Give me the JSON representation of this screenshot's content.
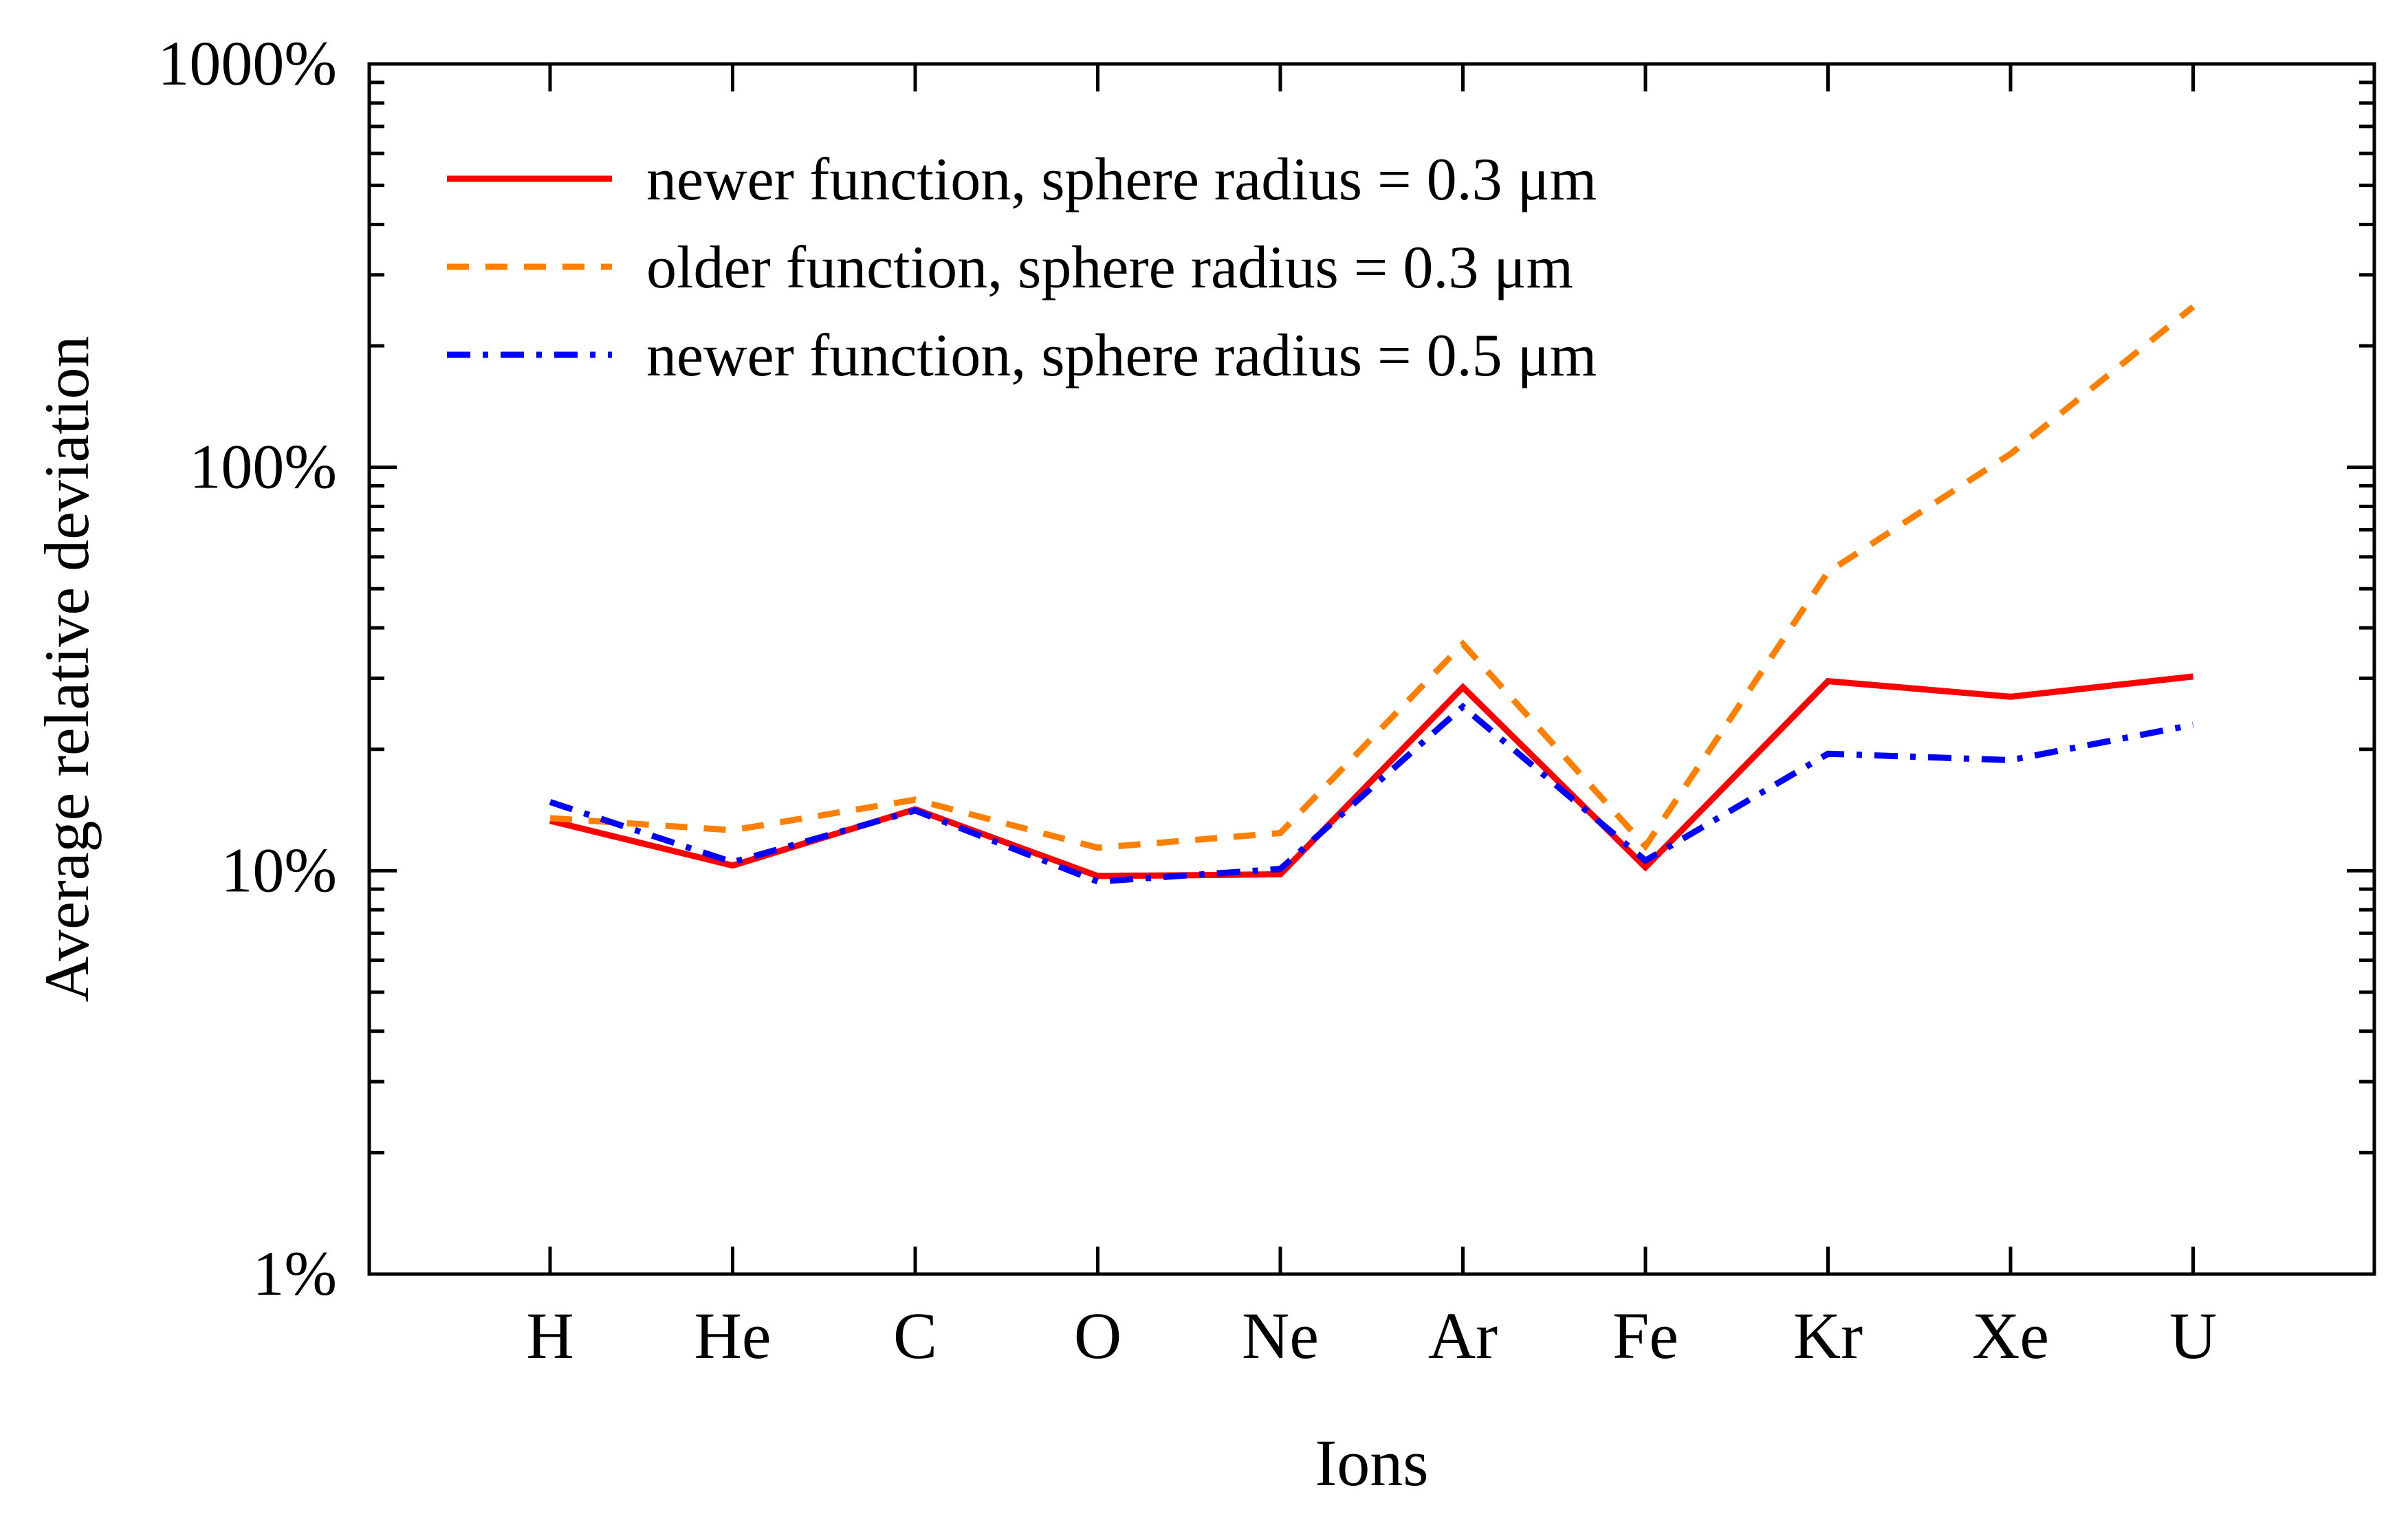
{
  "chart_data": {
    "type": "line",
    "categories": [
      "H",
      "He",
      "C",
      "O",
      "Ne",
      "Ar",
      "Fe",
      "Kr",
      "Xe",
      "U"
    ],
    "xlabel": "Ions",
    "ylabel": "Average relative deviation",
    "yscale": "log",
    "ylim": [
      1,
      1000
    ],
    "yticks": [
      1,
      10,
      100,
      1000
    ],
    "ytick_labels": [
      "1%",
      "10%",
      "100%",
      "1000%"
    ],
    "legend_position": "top-left",
    "grid": false,
    "series": [
      {
        "name": "newer function, sphere radius = 0.3 μm",
        "color": "#ff0000",
        "style": "solid",
        "values": [
          13.3,
          10.3,
          14.2,
          9.7,
          9.8,
          28.5,
          10.2,
          29.5,
          27.0,
          30.3
        ]
      },
      {
        "name": "older function, sphere radius = 0.3 μm",
        "color": "#ff8000",
        "style": "dashed",
        "values": [
          13.5,
          12.6,
          15.0,
          11.4,
          12.4,
          36.5,
          11.5,
          55.0,
          108.0,
          250.0
        ]
      },
      {
        "name": "newer function, sphere radius = 0.5 μm",
        "color": "#0000ff",
        "style": "dashdot",
        "values": [
          14.8,
          10.5,
          14.1,
          9.4,
          10.1,
          25.5,
          10.6,
          19.5,
          18.8,
          23.0
        ]
      }
    ]
  }
}
